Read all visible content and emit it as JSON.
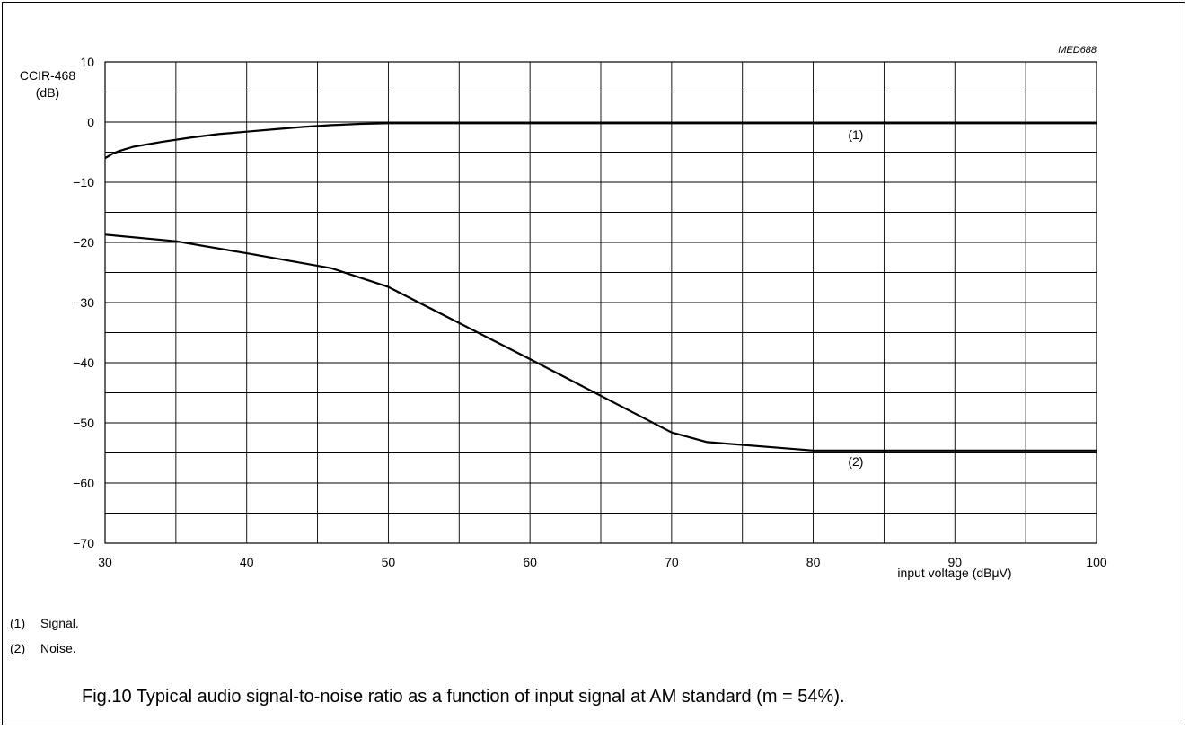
{
  "chart_data": {
    "type": "line",
    "code": "MED688",
    "ylabel_line1": "CCIR-468",
    "ylabel_line2": "(dB)",
    "xlabel": "input voltage (dBμV)",
    "xlim": [
      30,
      100
    ],
    "ylim": [
      -70,
      10
    ],
    "xticks": [
      30,
      40,
      50,
      60,
      70,
      80,
      90,
      100
    ],
    "yticks": [
      10,
      0,
      -10,
      -20,
      -30,
      -40,
      -50,
      -60,
      -70
    ],
    "x_grid_step": 5,
    "y_grid_step": 5,
    "grid": true,
    "series": [
      {
        "label": "(1)",
        "label_at": [
          83,
          -2.8
        ],
        "x": [
          30,
          30.5,
          31,
          32,
          34,
          36,
          38,
          40,
          42,
          44,
          46,
          48,
          50,
          60,
          70,
          80,
          90,
          100
        ],
        "y": [
          -6,
          -5.3,
          -4.8,
          -4.1,
          -3.3,
          -2.6,
          -2.0,
          -1.6,
          -1.2,
          -0.8,
          -0.5,
          -0.3,
          -0.2,
          -0.2,
          -0.2,
          -0.2,
          -0.2,
          -0.2
        ]
      },
      {
        "label": "(2)",
        "label_at": [
          83,
          -57.2
        ],
        "x": [
          30,
          35,
          40,
          46,
          50,
          60,
          70,
          72.5,
          80,
          90,
          100
        ],
        "y": [
          -18.7,
          -19.8,
          -21.8,
          -24.3,
          -27.4,
          -39.4,
          -51.6,
          -53.2,
          -54.6,
          -54.6,
          -54.6
        ]
      }
    ]
  },
  "legend": [
    {
      "key": "(1)",
      "text": "Signal."
    },
    {
      "key": "(2)",
      "text": "Noise."
    }
  ],
  "caption": "Fig.10  Typical audio signal-to-noise ratio as a function of input signal at AM standard (m = 54%)."
}
